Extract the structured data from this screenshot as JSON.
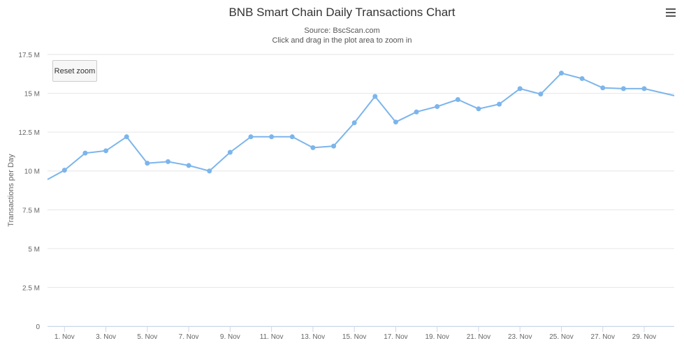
{
  "chart_data": {
    "type": "line",
    "title": "BNB Smart Chain Daily Transactions Chart",
    "subtitle_lines": [
      "Source: BscScan.com",
      "Click and drag in the plot area to zoom in"
    ],
    "ylabel": "Transactions per Day",
    "xlabel": "",
    "ylim": [
      0,
      17500000
    ],
    "y_ticks": [
      {
        "value": 0,
        "label": "0"
      },
      {
        "value": 2500000,
        "label": "2.5 M"
      },
      {
        "value": 5000000,
        "label": "5 M"
      },
      {
        "value": 7500000,
        "label": "7.5 M"
      },
      {
        "value": 10000000,
        "label": "10 M"
      },
      {
        "value": 12500000,
        "label": "12.5 M"
      },
      {
        "value": 15000000,
        "label": "15 M"
      },
      {
        "value": 17500000,
        "label": "17.5 M"
      }
    ],
    "x_ticks": [
      {
        "day": 1,
        "label": "1. Nov"
      },
      {
        "day": 3,
        "label": "3. Nov"
      },
      {
        "day": 5,
        "label": "5. Nov"
      },
      {
        "day": 7,
        "label": "7. Nov"
      },
      {
        "day": 9,
        "label": "9. Nov"
      },
      {
        "day": 11,
        "label": "11. Nov"
      },
      {
        "day": 13,
        "label": "13. Nov"
      },
      {
        "day": 15,
        "label": "15. Nov"
      },
      {
        "day": 17,
        "label": "17. Nov"
      },
      {
        "day": 19,
        "label": "19. Nov"
      },
      {
        "day": 21,
        "label": "21. Nov"
      },
      {
        "day": 23,
        "label": "23. Nov"
      },
      {
        "day": 25,
        "label": "25. Nov"
      },
      {
        "day": 27,
        "label": "27. Nov"
      },
      {
        "day": 29,
        "label": "29. Nov"
      }
    ],
    "xlim": [
      0.18,
      30.45
    ],
    "grid": true,
    "series": [
      {
        "color": "#7cb5ec",
        "points": [
          {
            "x": 0.18,
            "y": 9450000
          },
          {
            "x": 1,
            "y": 10050000
          },
          {
            "x": 2,
            "y": 11150000
          },
          {
            "x": 3,
            "y": 11300000
          },
          {
            "x": 4,
            "y": 12200000
          },
          {
            "x": 5,
            "y": 10500000
          },
          {
            "x": 6,
            "y": 10600000
          },
          {
            "x": 7,
            "y": 10350000
          },
          {
            "x": 8,
            "y": 10000000
          },
          {
            "x": 9,
            "y": 11200000
          },
          {
            "x": 10,
            "y": 12200000
          },
          {
            "x": 11,
            "y": 12200000
          },
          {
            "x": 12,
            "y": 12200000
          },
          {
            "x": 13,
            "y": 11500000
          },
          {
            "x": 14,
            "y": 11600000
          },
          {
            "x": 15,
            "y": 13100000
          },
          {
            "x": 16,
            "y": 14800000
          },
          {
            "x": 17,
            "y": 13150000
          },
          {
            "x": 18,
            "y": 13800000
          },
          {
            "x": 19,
            "y": 14150000
          },
          {
            "x": 20,
            "y": 14600000
          },
          {
            "x": 21,
            "y": 14000000
          },
          {
            "x": 22,
            "y": 14300000
          },
          {
            "x": 23,
            "y": 15300000
          },
          {
            "x": 24,
            "y": 14950000
          },
          {
            "x": 25,
            "y": 16300000
          },
          {
            "x": 26,
            "y": 15950000
          },
          {
            "x": 27,
            "y": 15350000
          },
          {
            "x": 28,
            "y": 15300000
          },
          {
            "x": 29,
            "y": 15300000
          },
          {
            "x": 30.45,
            "y": 14850000
          }
        ]
      }
    ]
  },
  "controls": {
    "reset_zoom_label": "Reset zoom",
    "menu_icon": "hamburger-menu-icon"
  }
}
